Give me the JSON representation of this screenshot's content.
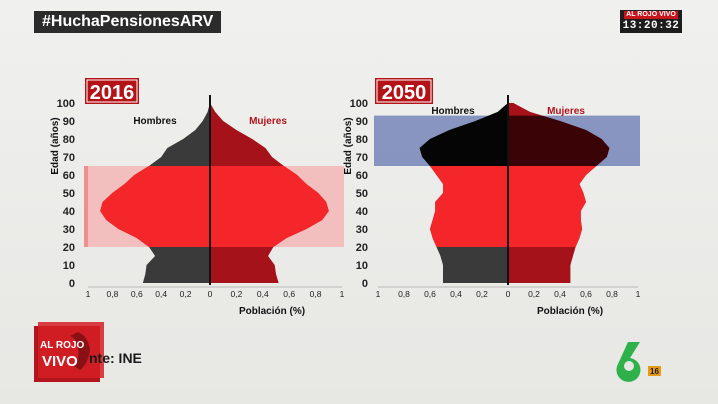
{
  "header": {
    "hashtag": "#HuchaPensionesARV"
  },
  "bug": {
    "brand": "AL ROJO VIVO",
    "time": "13:20:32"
  },
  "source": {
    "text": "nte: INE",
    "logo_text_top": "AL ROJO",
    "logo_text_bottom": "VIVO"
  },
  "channel": {
    "logo": "6",
    "rating": "16"
  },
  "colors": {
    "male_dark": "#3a3a3a",
    "female_dark": "#a5121a",
    "red_bright": "#f4262a",
    "band_red_light": "#f4b3b3",
    "band_blue": "#7585b8",
    "year_label_bg": "#b31217",
    "black_shape": "#050505"
  },
  "chart_data": [
    {
      "type": "area",
      "title": "2016",
      "xlabel": "Población (%)",
      "ylabel": "Edad (años)",
      "left_label": "Hombres",
      "right_label": "Mujeres",
      "yticks": [
        0,
        10,
        20,
        30,
        40,
        50,
        60,
        70,
        80,
        90,
        100
      ],
      "xticks_left": [
        "1",
        "0,8",
        "0,6",
        "0,4",
        "0,2"
      ],
      "xticks_right": [
        "0",
        "0,2",
        "0,4",
        "0,6",
        "0,8",
        "1"
      ],
      "xlim": [
        -1,
        1
      ],
      "ylim": [
        0,
        100
      ],
      "highlight": {
        "ages": [
          20,
          65
        ],
        "color": "red"
      },
      "ages": [
        0,
        5,
        10,
        15,
        20,
        25,
        30,
        35,
        40,
        45,
        50,
        55,
        60,
        65,
        70,
        75,
        80,
        85,
        90,
        95,
        100
      ],
      "hombres": [
        0.55,
        0.53,
        0.52,
        0.45,
        0.5,
        0.6,
        0.75,
        0.85,
        0.9,
        0.88,
        0.8,
        0.7,
        0.62,
        0.5,
        0.4,
        0.35,
        0.22,
        0.12,
        0.06,
        0.02,
        0.0
      ],
      "mujeres": [
        0.52,
        0.5,
        0.49,
        0.44,
        0.48,
        0.58,
        0.73,
        0.85,
        0.9,
        0.88,
        0.82,
        0.73,
        0.66,
        0.56,
        0.47,
        0.42,
        0.32,
        0.2,
        0.1,
        0.04,
        0.0
      ]
    },
    {
      "type": "area",
      "title": "2050",
      "xlabel": "Población (%)",
      "ylabel": "Edad (años)",
      "left_label": "Hombres",
      "right_label": "Mujeres",
      "yticks": [
        0,
        10,
        20,
        30,
        40,
        50,
        60,
        70,
        80,
        90,
        100
      ],
      "xticks_left": [
        "1",
        "0,8",
        "0,6",
        "0,4",
        "0,2"
      ],
      "xticks_right": [
        "0",
        "0,2",
        "0,4",
        "0,6",
        "0,8",
        "1"
      ],
      "xlim": [
        -1,
        1
      ],
      "ylim": [
        0,
        100
      ],
      "highlight": {
        "ages": [
          65,
          93
        ],
        "color": "blue"
      },
      "ages": [
        0,
        5,
        10,
        15,
        20,
        25,
        30,
        35,
        40,
        45,
        50,
        55,
        60,
        65,
        70,
        75,
        80,
        85,
        90,
        95,
        100
      ],
      "hombres": [
        0.5,
        0.5,
        0.5,
        0.52,
        0.55,
        0.58,
        0.6,
        0.58,
        0.56,
        0.56,
        0.5,
        0.5,
        0.55,
        0.6,
        0.66,
        0.68,
        0.6,
        0.45,
        0.25,
        0.08,
        0.0
      ],
      "mujeres": [
        0.48,
        0.48,
        0.48,
        0.5,
        0.52,
        0.55,
        0.57,
        0.56,
        0.56,
        0.6,
        0.58,
        0.55,
        0.6,
        0.68,
        0.76,
        0.78,
        0.72,
        0.6,
        0.4,
        0.17,
        0.04
      ]
    }
  ]
}
